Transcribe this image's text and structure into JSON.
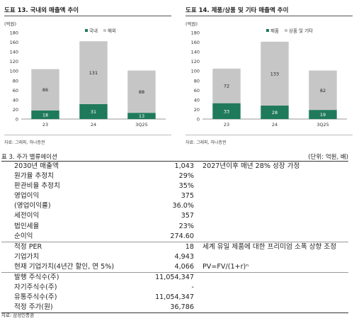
{
  "charts_meta": {
    "source_text": "자료: 그래피, 하나증권",
    "unit_label": "(억원)"
  },
  "chart_data": [
    {
      "type": "bar",
      "stacked": true,
      "title": "도표 13. 국내외 매출액 추이",
      "xlabel": "",
      "ylabel": "(억원)",
      "categories": [
        "23",
        "24",
        "3Q25"
      ],
      "ylim": [
        0,
        180
      ],
      "yticks": [
        0,
        20,
        40,
        60,
        80,
        100,
        120,
        140,
        160,
        180
      ],
      "legend_position": "top-right",
      "series": [
        {
          "name": "국내",
          "values": [
            18,
            31,
            13
          ],
          "color": "#1f7a5c"
        },
        {
          "name": "해외",
          "values": [
            86,
            131,
            88
          ],
          "color": "#c6c6c6"
        }
      ]
    },
    {
      "type": "bar",
      "stacked": true,
      "title": "도표 14. 제품/상품 및 기타 매출액 추이",
      "xlabel": "",
      "ylabel": "(억원)",
      "categories": [
        "23",
        "24",
        "3Q25"
      ],
      "ylim": [
        0,
        180
      ],
      "yticks": [
        0,
        20,
        40,
        60,
        80,
        100,
        120,
        140,
        160,
        180
      ],
      "legend_position": "top-right",
      "series": [
        {
          "name": "제품",
          "values": [
            33,
            28,
            19
          ],
          "color": "#1f7a5c"
        },
        {
          "name": "상품 및 기타",
          "values": [
            72,
            133,
            82
          ],
          "color": "#c6c6c6"
        }
      ]
    }
  ],
  "valuation_table": {
    "title": "표 3. 주가 밸류에이션",
    "unit": "(단위: 억원, 배)",
    "rows": [
      {
        "label": "2030년 매출액",
        "value": "1,043",
        "note": "2027년이후 매년 28% 성장 가정",
        "line": "top"
      },
      {
        "label": "원가율 추정치",
        "value": "29%",
        "note": ""
      },
      {
        "label": "판관비율 추정치",
        "value": "35%",
        "note": ""
      },
      {
        "label": "영업이익",
        "value": "375",
        "note": ""
      },
      {
        "label": "(영업이익률)",
        "value": "36.0%",
        "note": ""
      },
      {
        "label": "세전이익",
        "value": "357",
        "note": ""
      },
      {
        "label": "법인세율",
        "value": "23%",
        "note": ""
      },
      {
        "label": "순이익",
        "value": "274.60",
        "note": ""
      },
      {
        "label": "적정 PER",
        "value": "18",
        "note": "세계 유일 제품에 대한 프리미엄 소폭 상향 조정",
        "line": "sep"
      },
      {
        "label": "기업가치",
        "value": "4,943",
        "note": ""
      },
      {
        "label": "현재 기업가치(4년간 할인, 연 5%)",
        "value": "4,066",
        "note": "PV=FV/(1+r)ⁿ"
      },
      {
        "label": "발행 주식수(주)",
        "value": "11,054,347",
        "note": "",
        "line": "sep"
      },
      {
        "label": "자기주식수(주)",
        "value": "-",
        "note": ""
      },
      {
        "label": "유통주식수(주)",
        "value": "11,054,347",
        "note": ""
      },
      {
        "label": "적정 주가(원)",
        "value": "36,786",
        "note": "",
        "line": "last"
      }
    ],
    "source": "자료: 삼성인증권"
  }
}
